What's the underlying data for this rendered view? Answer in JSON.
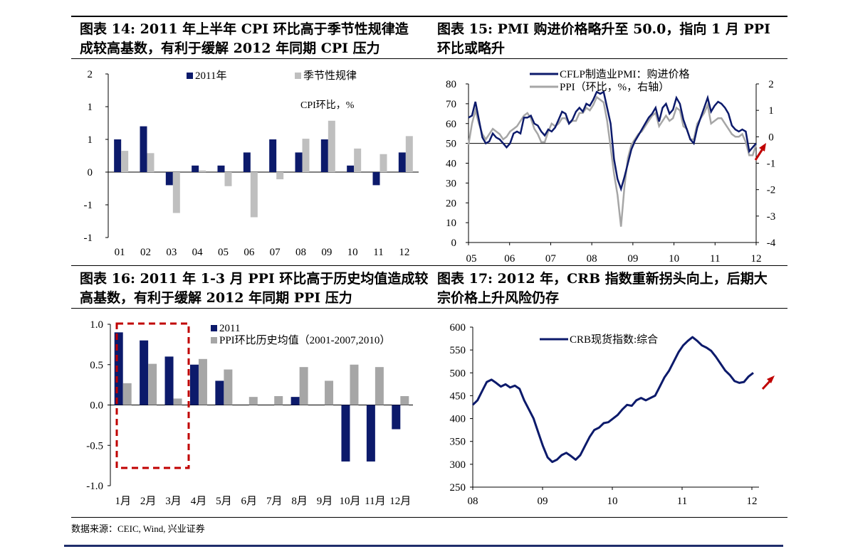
{
  "titles": {
    "t14": [
      "图表 14:  2011 年上半年 CPI 环比高于季节性规律造",
      "成较高基数，有利于缓解 2012 年同期 CPI 压力"
    ],
    "t15": [
      "图表 15:  PMI 购进价格略升至 50.0，指向 1 月 PPI",
      "环比或略升"
    ],
    "t16": [
      "图表 16: 2011 年 1-3 月 PPI 环比高于历史均值造成较",
      "高基数，有利于缓解 2012 年同期 PPI 压力"
    ],
    "t17": [
      "图表 17:  2012 年，CRB 指数重新拐头向上，后期大",
      "宗价格上升风险仍存"
    ]
  },
  "source": "数据来源：CEIC, Wind, 兴业证券",
  "colors": {
    "navy": "#0c1a6b",
    "gray": "#bfbfbf",
    "gray2": "#a6a6a6",
    "red": "#c00000"
  },
  "chart_data": [
    {
      "id": "c14",
      "type": "bar",
      "categories": [
        "01",
        "02",
        "03",
        "04",
        "05",
        "06",
        "07",
        "08",
        "09",
        "10",
        "11",
        "12"
      ],
      "series": [
        {
          "name": "2011年",
          "values": [
            1.0,
            1.4,
            -0.4,
            0.2,
            0.2,
            0.6,
            1.0,
            0.6,
            1.0,
            0.2,
            -0.4,
            0.6
          ]
        },
        {
          "name": "季节性规律",
          "values": [
            0.65,
            0.58,
            -1.25,
            0.05,
            -0.43,
            -1.38,
            -0.22,
            1.02,
            1.57,
            0.72,
            0.55,
            1.1
          ]
        }
      ],
      "annotation": "CPI环比，%",
      "yticks": [
        "2",
        "1",
        "1",
        "0",
        "-1",
        "-1"
      ],
      "ylim": [
        -2,
        3
      ]
    },
    {
      "id": "c15",
      "type": "line",
      "x_ticks": [
        "05",
        "06",
        "07",
        "08",
        "09",
        "10",
        "11",
        "12"
      ],
      "y_left_ticks": [
        0,
        10,
        20,
        30,
        40,
        50,
        60,
        70,
        80
      ],
      "y_right_ticks": [
        2,
        1,
        0,
        -1,
        -2,
        -3,
        -4
      ],
      "ylim_left": [
        0,
        80
      ],
      "ylim_right": [
        -4,
        2
      ],
      "series": [
        {
          "name": "CFLP制造业PMI：购进价格",
          "axis": "left",
          "values": [
            63,
            64,
            71,
            62,
            53,
            50,
            51,
            55,
            53,
            52,
            50,
            48,
            50,
            55,
            56,
            55,
            63,
            63,
            64,
            60,
            59,
            56,
            54,
            57,
            56,
            58,
            62,
            66,
            65,
            60,
            62,
            66,
            68,
            66,
            70,
            69,
            72,
            76,
            75,
            76,
            68,
            60,
            42,
            32,
            27,
            33,
            40,
            47,
            51,
            54,
            57,
            60,
            63,
            65,
            68,
            61,
            68,
            70,
            65,
            67,
            73,
            70,
            62,
            57,
            52,
            50,
            58,
            63,
            68,
            73,
            66,
            69,
            71,
            70,
            68,
            65,
            59,
            57,
            56,
            57,
            56,
            46,
            48,
            50
          ]
        },
        {
          "name": "PPI（环比，%，右轴）",
          "axis": "right",
          "values": [
            -0.3,
            0.5,
            1.0,
            0.5,
            0.1,
            -0.1,
            0.1,
            0.3,
            0.2,
            0.1,
            -0.1,
            0,
            0.2,
            0.3,
            0.4,
            0.6,
            0.8,
            0.9,
            0.7,
            0.3,
            0.1,
            -0.2,
            -0.2,
            0.2,
            0.5,
            0.4,
            0.5,
            0.7,
            0.7,
            0.5,
            0.6,
            0.6,
            0.9,
            0.9,
            1.1,
            1.0,
            1.2,
            1.5,
            1.4,
            1.3,
            0.6,
            -0.4,
            -1.4,
            -2.2,
            -3.4,
            -1.9,
            -0.8,
            -0.3,
            -0.1,
            0.1,
            0.2,
            0.4,
            0.6,
            0.8,
            0.9,
            0.4,
            0.6,
            0.8,
            0.6,
            0.7,
            1.1,
            1.0,
            0.4,
            0.3,
            -0.1,
            -0.1,
            0.5,
            0.7,
            0.9,
            1.2,
            0.5,
            0.6,
            0.7,
            0.7,
            0.5,
            0.3,
            0.1,
            0,
            0,
            0.1,
            -0.2,
            -0.7,
            -0.7,
            -0.3
          ]
        }
      ]
    },
    {
      "id": "c16",
      "type": "bar",
      "categories": [
        "1月",
        "2月",
        "3月",
        "4月",
        "5月",
        "6月",
        "7月",
        "8月",
        "9月",
        "10月",
        "11月",
        "12月"
      ],
      "series": [
        {
          "name": "2011",
          "values": [
            0.9,
            0.8,
            0.6,
            0.5,
            0.3,
            0,
            0,
            0.1,
            0,
            -0.7,
            -0.7,
            -0.3
          ]
        },
        {
          "name": "PPI环比历史均值（2001-2007,2010）",
          "values": [
            0.27,
            0.51,
            0.08,
            0.57,
            0.44,
            0.1,
            0.11,
            0.47,
            0.3,
            0.5,
            0.47,
            0.11
          ]
        }
      ],
      "yticks": [
        "1.0",
        "0.5",
        "0.0",
        "-0.5",
        "-1.0"
      ],
      "ylim": [
        -1.0,
        1.0
      ]
    },
    {
      "id": "c17",
      "type": "line",
      "x_ticks": [
        "08",
        "09",
        "10",
        "11",
        "12"
      ],
      "y_ticks": [
        250,
        300,
        350,
        400,
        450,
        500,
        550,
        600
      ],
      "ylim": [
        250,
        600
      ],
      "series": [
        {
          "name": "CRB现货指数:综合",
          "values": [
            430,
            440,
            460,
            480,
            485,
            478,
            470,
            475,
            468,
            472,
            465,
            440,
            420,
            400,
            370,
            340,
            315,
            305,
            310,
            320,
            325,
            318,
            310,
            320,
            340,
            360,
            375,
            380,
            390,
            392,
            400,
            408,
            420,
            430,
            428,
            440,
            445,
            440,
            445,
            450,
            470,
            490,
            505,
            525,
            545,
            560,
            570,
            578,
            570,
            560,
            555,
            548,
            535,
            520,
            505,
            495,
            482,
            478,
            480,
            492,
            500
          ]
        }
      ]
    }
  ]
}
